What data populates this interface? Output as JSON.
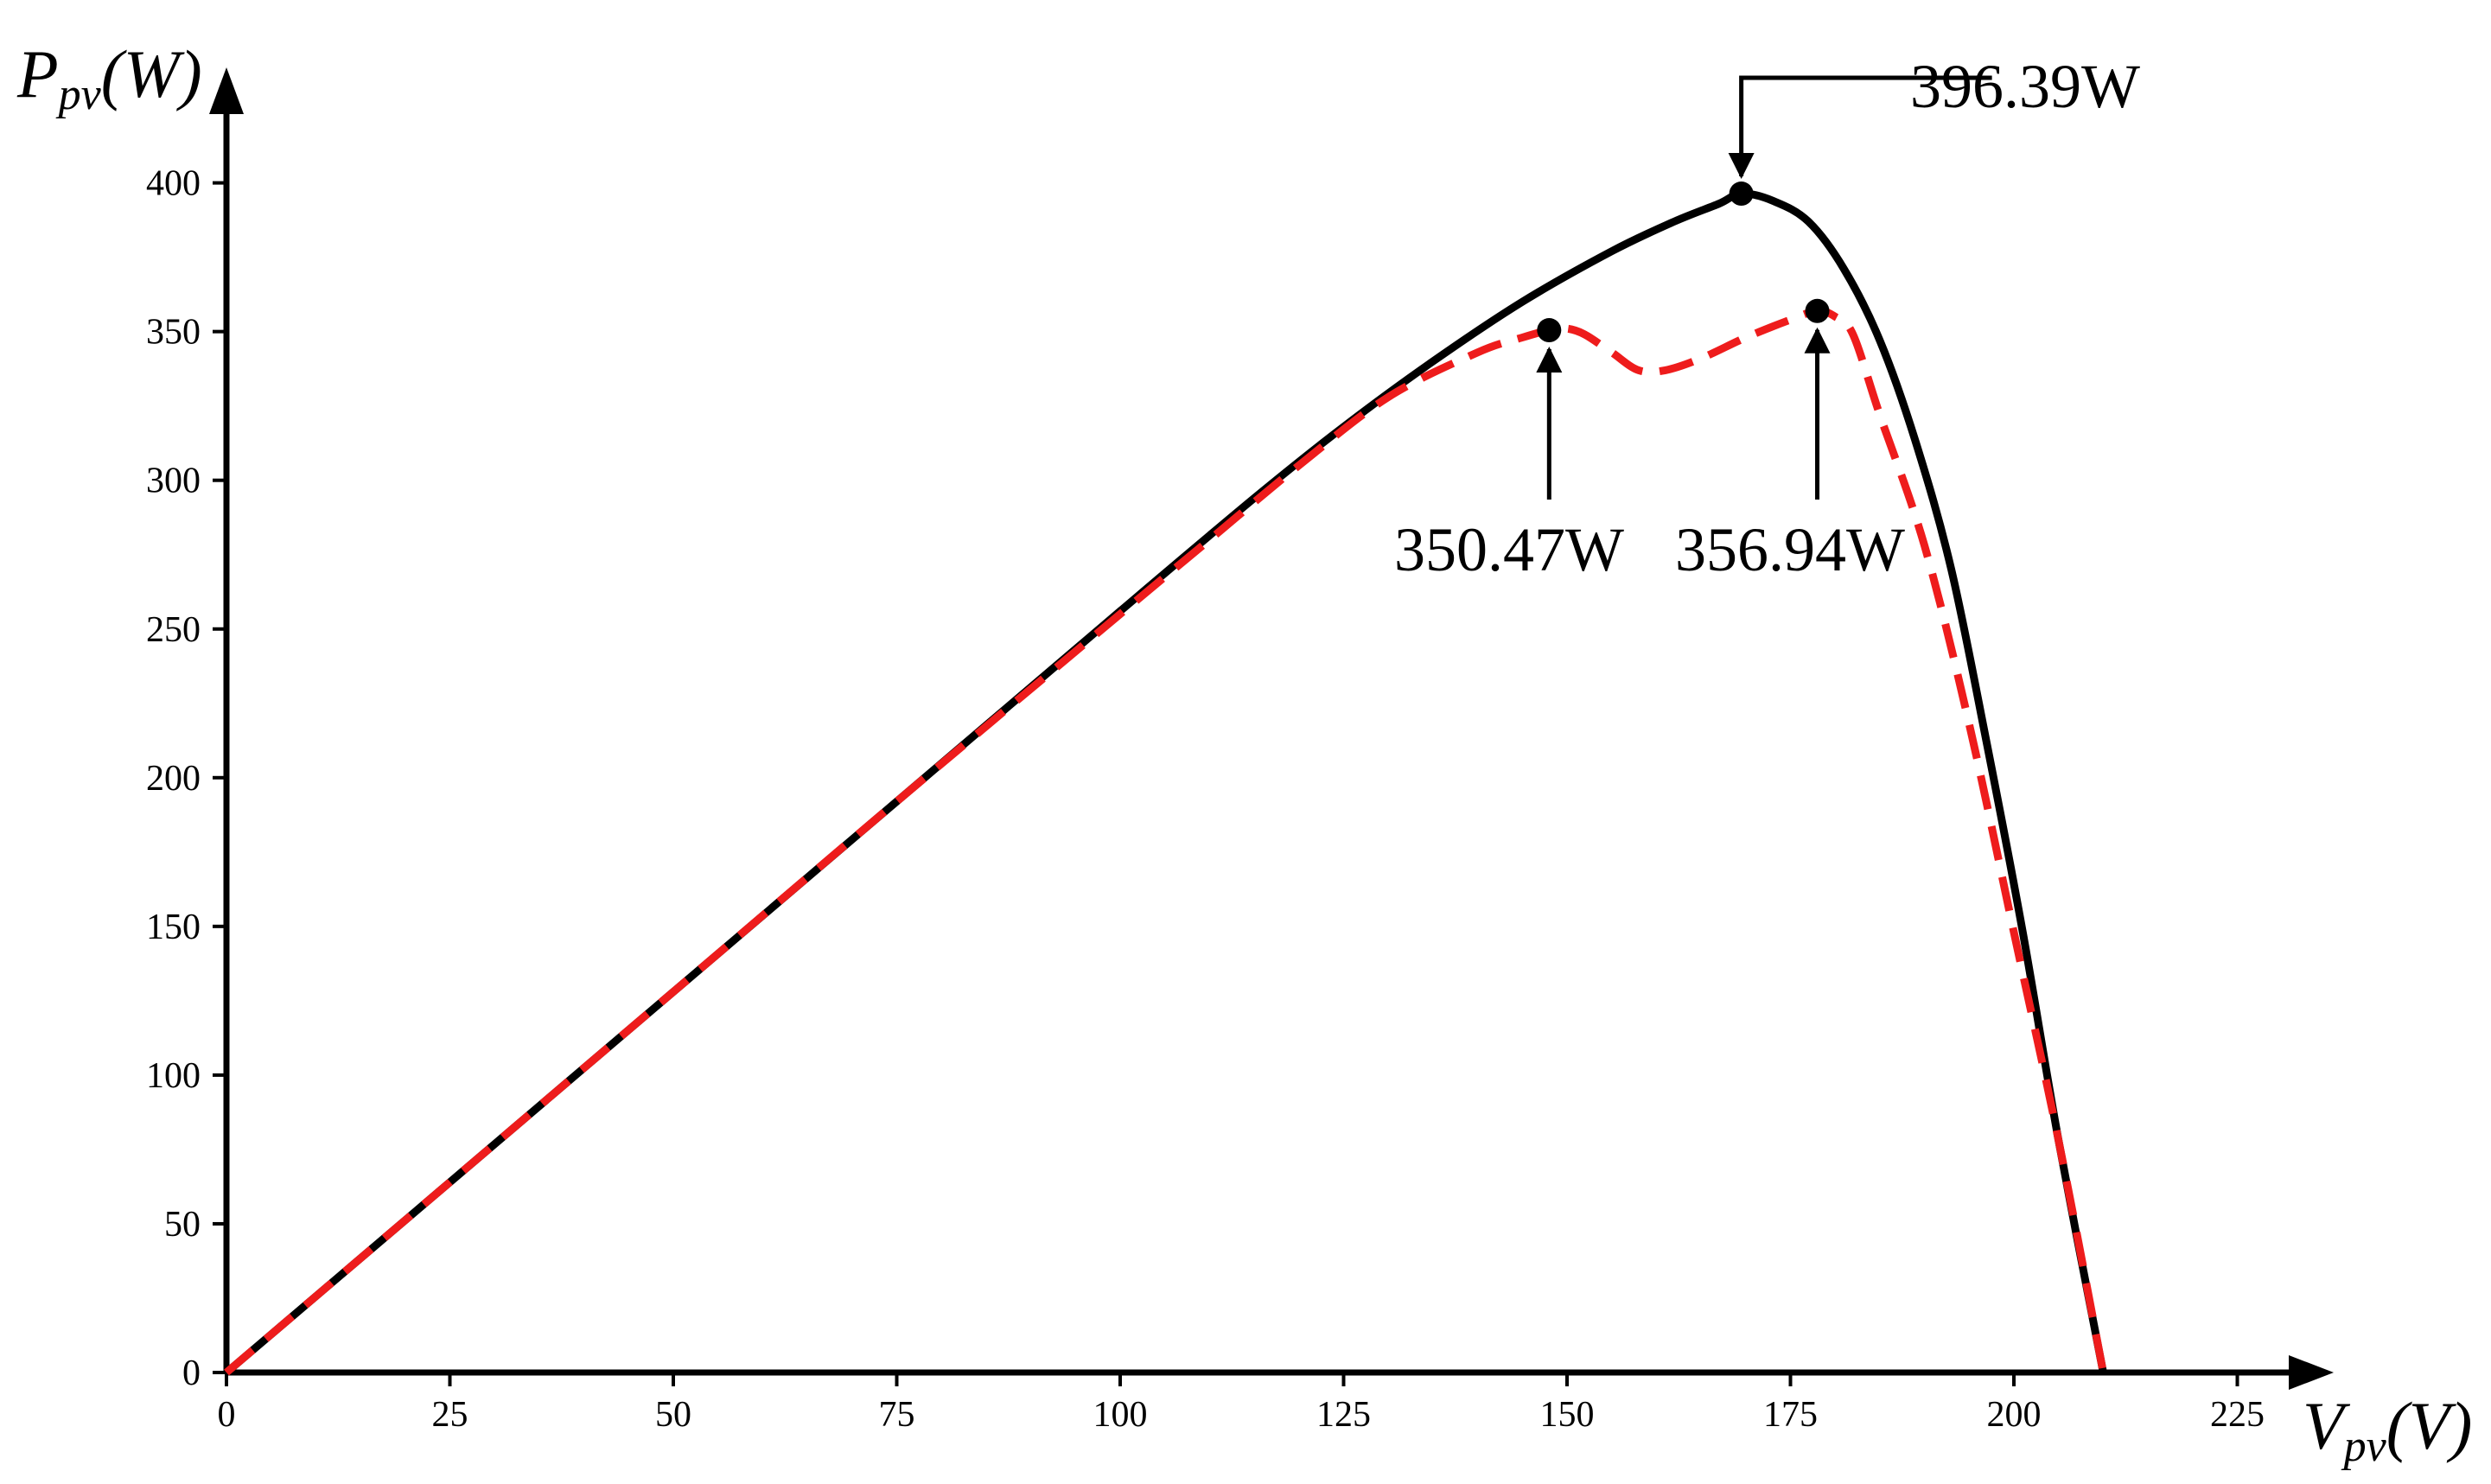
{
  "chart_data": {
    "type": "line",
    "title": "",
    "xlabel": {
      "main": "V",
      "sub": "pv",
      "unit": "(V)"
    },
    "ylabel": {
      "main": "P",
      "sub": "pv",
      "unit": "(W)"
    },
    "xlim": [
      0,
      230
    ],
    "ylim": [
      0,
      420
    ],
    "xticks": [
      0,
      25,
      50,
      75,
      100,
      125,
      150,
      175,
      200,
      225
    ],
    "yticks": [
      0,
      50,
      100,
      150,
      200,
      250,
      300,
      350,
      400
    ],
    "grid": false,
    "series": [
      {
        "style": "solid",
        "color": "#000000",
        "x": [
          0,
          25,
          50,
          75,
          100,
          115,
          125,
          135,
          145,
          155,
          162,
          167,
          169.5,
          173,
          177,
          181,
          185,
          189,
          193,
          197,
          201,
          205,
          210
        ],
        "y": [
          0,
          64,
          128,
          192,
          256,
          294,
          318,
          340,
          360,
          377,
          387,
          393,
          396.39,
          394,
          387,
          371,
          347,
          313,
          270,
          211,
          148,
          78,
          0
        ]
      },
      {
        "style": "dashed",
        "color": "#ee1c1c",
        "x": [
          0,
          25,
          50,
          75,
          100,
          110,
          120,
          130,
          140,
          145,
          148,
          150,
          152,
          155,
          158,
          161,
          165,
          170,
          175,
          178,
          180,
          182,
          185,
          190,
          195,
          200,
          205,
          210
        ],
        "y": [
          0,
          64,
          128,
          192,
          255,
          280,
          305,
          328,
          343,
          348,
          350.47,
          351,
          349,
          343,
          337,
          337,
          341,
          348,
          354,
          356.94,
          355,
          349,
          322,
          278,
          218,
          148,
          78,
          0
        ]
      }
    ],
    "annotations": [
      {
        "label": "396.39W",
        "x": 169.5,
        "y": 396.39
      },
      {
        "label": "350.47W",
        "x": 148,
        "y": 350.47
      },
      {
        "label": "356.94W",
        "x": 178,
        "y": 356.94
      }
    ]
  }
}
